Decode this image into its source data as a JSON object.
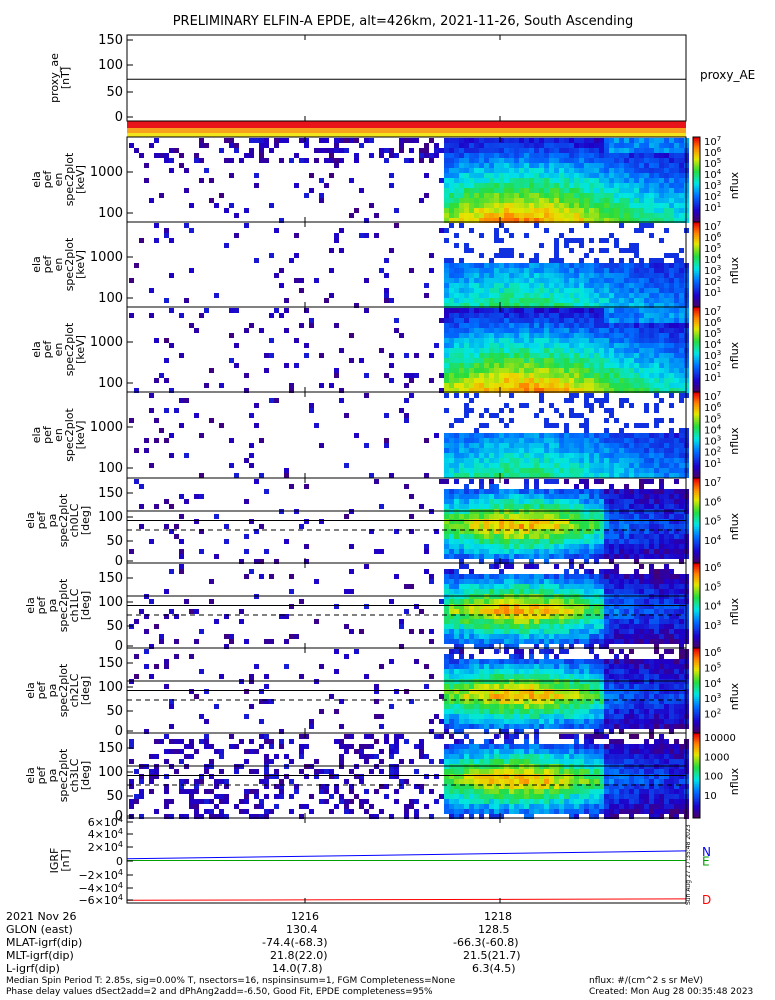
{
  "title": "PRELIMINARY ELFIN-A EPDE, alt=426km, 2021-11-26, South Ascending",
  "colors": {
    "background": "#ffffff",
    "axis": "#000000",
    "bar_red": "#e8141a",
    "bar_orange": "#f7a11c",
    "bar_yellow": "#f2e51c",
    "igrf_n": "#0000ff",
    "igrf_e": "#00a000",
    "igrf_d": "#ff0000"
  },
  "chart_data": [
    {
      "type": "line",
      "panel": "proxy_ae",
      "ylabel": [
        "proxy_ae",
        "[nT]"
      ],
      "yticks": [
        "150",
        "100",
        "50",
        "0"
      ],
      "ylim": [
        -10,
        155
      ],
      "series": [
        {
          "name": "proxy_AE",
          "values": [
            70,
            70
          ]
        }
      ]
    },
    {
      "type": "heatmap",
      "panel": "energy spectrogram 1",
      "ylabel": [
        "ela",
        "pef",
        "en",
        "spec2plot",
        "[keV]"
      ],
      "yticks": [
        "1000",
        "100"
      ],
      "ylim": [
        63,
        7000
      ],
      "yscale": "log",
      "colorbar": {
        "label": "nflux",
        "ticks": [
          "10^7",
          "10^6",
          "10^5",
          "10^4",
          "10^3",
          "10^2",
          "10^1"
        ]
      }
    },
    {
      "type": "heatmap",
      "panel": "energy spectrogram 2",
      "ylabel": [
        "ela",
        "pef",
        "en",
        "spec2plot",
        "[keV]"
      ],
      "yticks": [
        "1000",
        "100"
      ],
      "ylim": [
        63,
        7000
      ],
      "yscale": "log",
      "colorbar": {
        "label": "nflux",
        "ticks": [
          "10^7",
          "10^6",
          "10^5",
          "10^4",
          "10^3",
          "10^2",
          "10^1"
        ]
      }
    },
    {
      "type": "heatmap",
      "panel": "energy spectrogram 3",
      "ylabel": [
        "ela",
        "pef",
        "en",
        "spec2plot",
        "[keV]"
      ],
      "yticks": [
        "1000",
        "100"
      ],
      "ylim": [
        63,
        7000
      ],
      "yscale": "log",
      "colorbar": {
        "label": "nflux",
        "ticks": [
          "10^7",
          "10^6",
          "10^5",
          "10^4",
          "10^3",
          "10^2",
          "10^1"
        ]
      }
    },
    {
      "type": "heatmap",
      "panel": "energy spectrogram 4",
      "ylabel": [
        "ela",
        "pef",
        "en",
        "spec2plot",
        "[keV]"
      ],
      "yticks": [
        "1000",
        "100"
      ],
      "ylim": [
        63,
        7000
      ],
      "yscale": "log",
      "colorbar": {
        "label": "nflux",
        "ticks": [
          "10^7",
          "10^6",
          "10^5",
          "10^4",
          "10^3",
          "10^2",
          "10^1"
        ]
      }
    },
    {
      "type": "heatmap",
      "panel": "pitch angle ch0LC",
      "ylabel": [
        "ela",
        "pef",
        "pa",
        "spec2plot",
        "ch0LC",
        "[deg]"
      ],
      "yticks": [
        "150",
        "100",
        "50",
        "0"
      ],
      "ylim": [
        0,
        180
      ],
      "ref_lines_solid": [
        110,
        90
      ],
      "ref_lines_dashed": [
        70
      ],
      "colorbar": {
        "label": "nflux",
        "ticks": [
          "10^7",
          "10^6",
          "10^5",
          "10^4"
        ]
      }
    },
    {
      "type": "heatmap",
      "panel": "pitch angle ch1LC",
      "ylabel": [
        "ela",
        "pef",
        "pa",
        "spec2plot",
        "ch1LC",
        "[deg]"
      ],
      "yticks": [
        "150",
        "100",
        "50",
        "0"
      ],
      "ylim": [
        0,
        180
      ],
      "ref_lines_solid": [
        110,
        90
      ],
      "ref_lines_dashed": [
        70
      ],
      "colorbar": {
        "label": "nflux",
        "ticks": [
          "10^6",
          "10^5",
          "10^4",
          "10^3"
        ]
      }
    },
    {
      "type": "heatmap",
      "panel": "pitch angle ch2LC",
      "ylabel": [
        "ela",
        "pef",
        "pa",
        "spec2plot",
        "ch2LC",
        "[deg]"
      ],
      "yticks": [
        "150",
        "100",
        "50",
        "0"
      ],
      "ylim": [
        0,
        180
      ],
      "ref_lines_solid": [
        110,
        90
      ],
      "ref_lines_dashed": [
        70
      ],
      "colorbar": {
        "label": "nflux",
        "ticks": [
          "10^6",
          "10^5",
          "10^4",
          "10^3",
          "10^2"
        ]
      }
    },
    {
      "type": "heatmap",
      "panel": "pitch angle ch3LC",
      "ylabel": [
        "ela",
        "pef",
        "pa",
        "spec2plot",
        "ch3LC",
        "[deg]"
      ],
      "yticks": [
        "150",
        "100",
        "50",
        "0"
      ],
      "ylim": [
        0,
        180
      ],
      "ref_lines_solid": [
        110,
        90
      ],
      "ref_lines_dashed": [
        70
      ],
      "colorbar": {
        "label": "nflux",
        "ticks": [
          "10000",
          "1000",
          "100",
          "10"
        ]
      }
    },
    {
      "type": "line",
      "panel": "IGRF",
      "ylabel": [
        "IGRF",
        "[nT]"
      ],
      "yticks": [
        "6×10^4",
        "4×10^4",
        "2×10^4",
        "0",
        "−2×10^4",
        "−4×10^4",
        "−6×10^4"
      ],
      "ylim": [
        -62000,
        62000
      ],
      "series": [
        {
          "name": "N",
          "values": [
            2500,
            14000
          ]
        },
        {
          "name": "E",
          "values": [
            0,
            0
          ]
        },
        {
          "name": "D",
          "values": [
            -58000,
            -56000
          ]
        }
      ]
    }
  ],
  "side_stamp": "Sun Aug 27 17:35:48 2023",
  "footer": {
    "date_label": "2021 Nov 26",
    "rows": [
      {
        "label": "GLON (east)",
        "v1": "130.4",
        "v2": "128.5"
      },
      {
        "label": "MLAT-igrf(dip)",
        "v1": "-74.4(-68.3)",
        "v2": "-66.3(-60.8)"
      },
      {
        "label": "MLT-igrf(dip)",
        "v1": "21.8(22.0)",
        "v2": "21.5(21.7)"
      },
      {
        "label": "L-igrf(dip)",
        "v1": "14.0(7.8)",
        "v2": "6.3(4.5)"
      }
    ],
    "time_ticks": [
      "1216",
      "1218"
    ],
    "note_line1": "Median Spin Period T: 2.85s, sig=0.00% T, nsectors=16, nspinsinsum=1, FGM Completeness=None",
    "note_line2": "Phase delay values dSect2add=2 and dPhAng2add=-6.50, Good Fit, EPDE completeness=95%",
    "units": "nflux: #/(cm^2 s sr MeV)",
    "created": "Created: Mon Aug 28 00:35:48 2023"
  }
}
